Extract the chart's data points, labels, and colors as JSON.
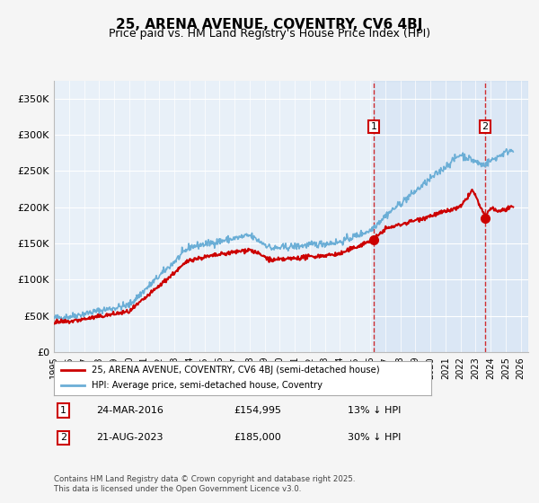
{
  "title": "25, ARENA AVENUE, COVENTRY, CV6 4BJ",
  "subtitle": "Price paid vs. HM Land Registry's House Price Index (HPI)",
  "xlabel": "",
  "ylabel": "",
  "ylim": [
    0,
    375000
  ],
  "yticks": [
    0,
    50000,
    100000,
    150000,
    200000,
    250000,
    300000,
    350000
  ],
  "ytick_labels": [
    "£0",
    "£50K",
    "£100K",
    "£150K",
    "£200K",
    "£250K",
    "£300K",
    "£350K"
  ],
  "hpi_color": "#6baed6",
  "price_color": "#cc0000",
  "marker_color": "#cc0000",
  "background_plot": "#e8f0f8",
  "background_fig": "#f5f5f5",
  "grid_color": "#ffffff",
  "sale1_date_num": 2016.23,
  "sale1_price": 154995,
  "sale1_label": "1",
  "sale2_date_num": 2023.64,
  "sale2_price": 185000,
  "sale2_label": "2",
  "legend_property": "25, ARENA AVENUE, COVENTRY, CV6 4BJ (semi-detached house)",
  "legend_hpi": "HPI: Average price, semi-detached house, Coventry",
  "annotation1": [
    "1",
    "24-MAR-2016",
    "£154,995",
    "13% ↓ HPI"
  ],
  "annotation2": [
    "2",
    "21-AUG-2023",
    "£185,000",
    "30% ↓ HPI"
  ],
  "footnote": "Contains HM Land Registry data © Crown copyright and database right 2025.\nThis data is licensed under the Open Government Licence v3.0.",
  "xmin": 1995.0,
  "xmax": 2026.5,
  "shade_start": 2016.23,
  "shade_end": 2026.5
}
